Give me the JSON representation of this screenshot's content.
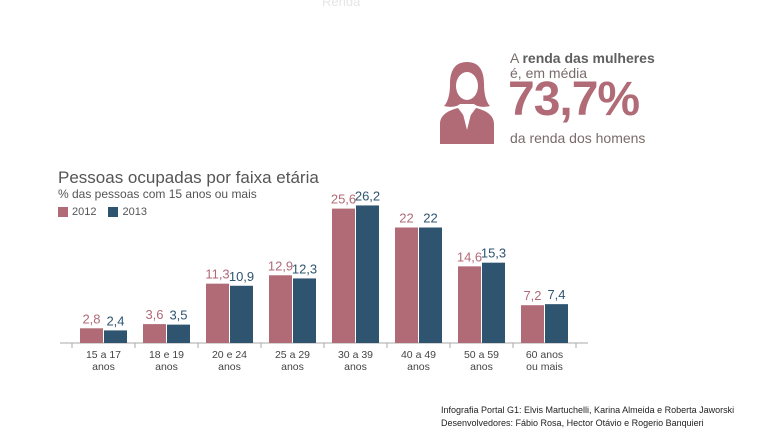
{
  "header": {
    "faded_text": "Renda"
  },
  "callout": {
    "line1_prefix": "A ",
    "line1_bold": "renda das mulheres",
    "line2": "é, em média",
    "value": "73,7%",
    "line3": "da renda dos homens",
    "icon": "woman-icon"
  },
  "chart_data": {
    "type": "bar",
    "title": "Pessoas ocupadas por faixa etária",
    "subtitle": "% das pessoas com 15 anos ou mais",
    "categories": [
      [
        "15 a 17",
        "anos"
      ],
      [
        "18 e 19",
        "anos"
      ],
      [
        "20 e 24",
        "anos"
      ],
      [
        "25 a 29",
        "anos"
      ],
      [
        "30 a 39",
        "anos"
      ],
      [
        "40 a 49",
        "anos"
      ],
      [
        "50 a 59",
        "anos"
      ],
      [
        "60 anos",
        "ou mais"
      ]
    ],
    "series": [
      {
        "name": "2012",
        "color": "#b06b77",
        "values": [
          2.8,
          3.6,
          11.3,
          12.9,
          25.6,
          22,
          14.6,
          7.2
        ],
        "labels": [
          "2,8",
          "3,6",
          "11,3",
          "12,9",
          "25,6",
          "22",
          "14,6",
          "7,2"
        ]
      },
      {
        "name": "2013",
        "color": "#2f5470",
        "values": [
          2.4,
          3.5,
          10.9,
          12.3,
          26.2,
          22,
          15.3,
          7.4
        ],
        "labels": [
          "2,4",
          "3,5",
          "10,9",
          "12,3",
          "26,2",
          "22",
          "15,3",
          "7,4"
        ]
      }
    ],
    "ylim": [
      0,
      27
    ],
    "xlabel": "",
    "ylabel": ""
  },
  "credits": {
    "line1": "Infografia Portal G1: Elvis Martuchelli, Karina Almeida e Roberta Jaworski",
    "line2": "Desenvolvedores: Fábio Rosa, Hector Otávio e Rogerio Banquieri"
  }
}
